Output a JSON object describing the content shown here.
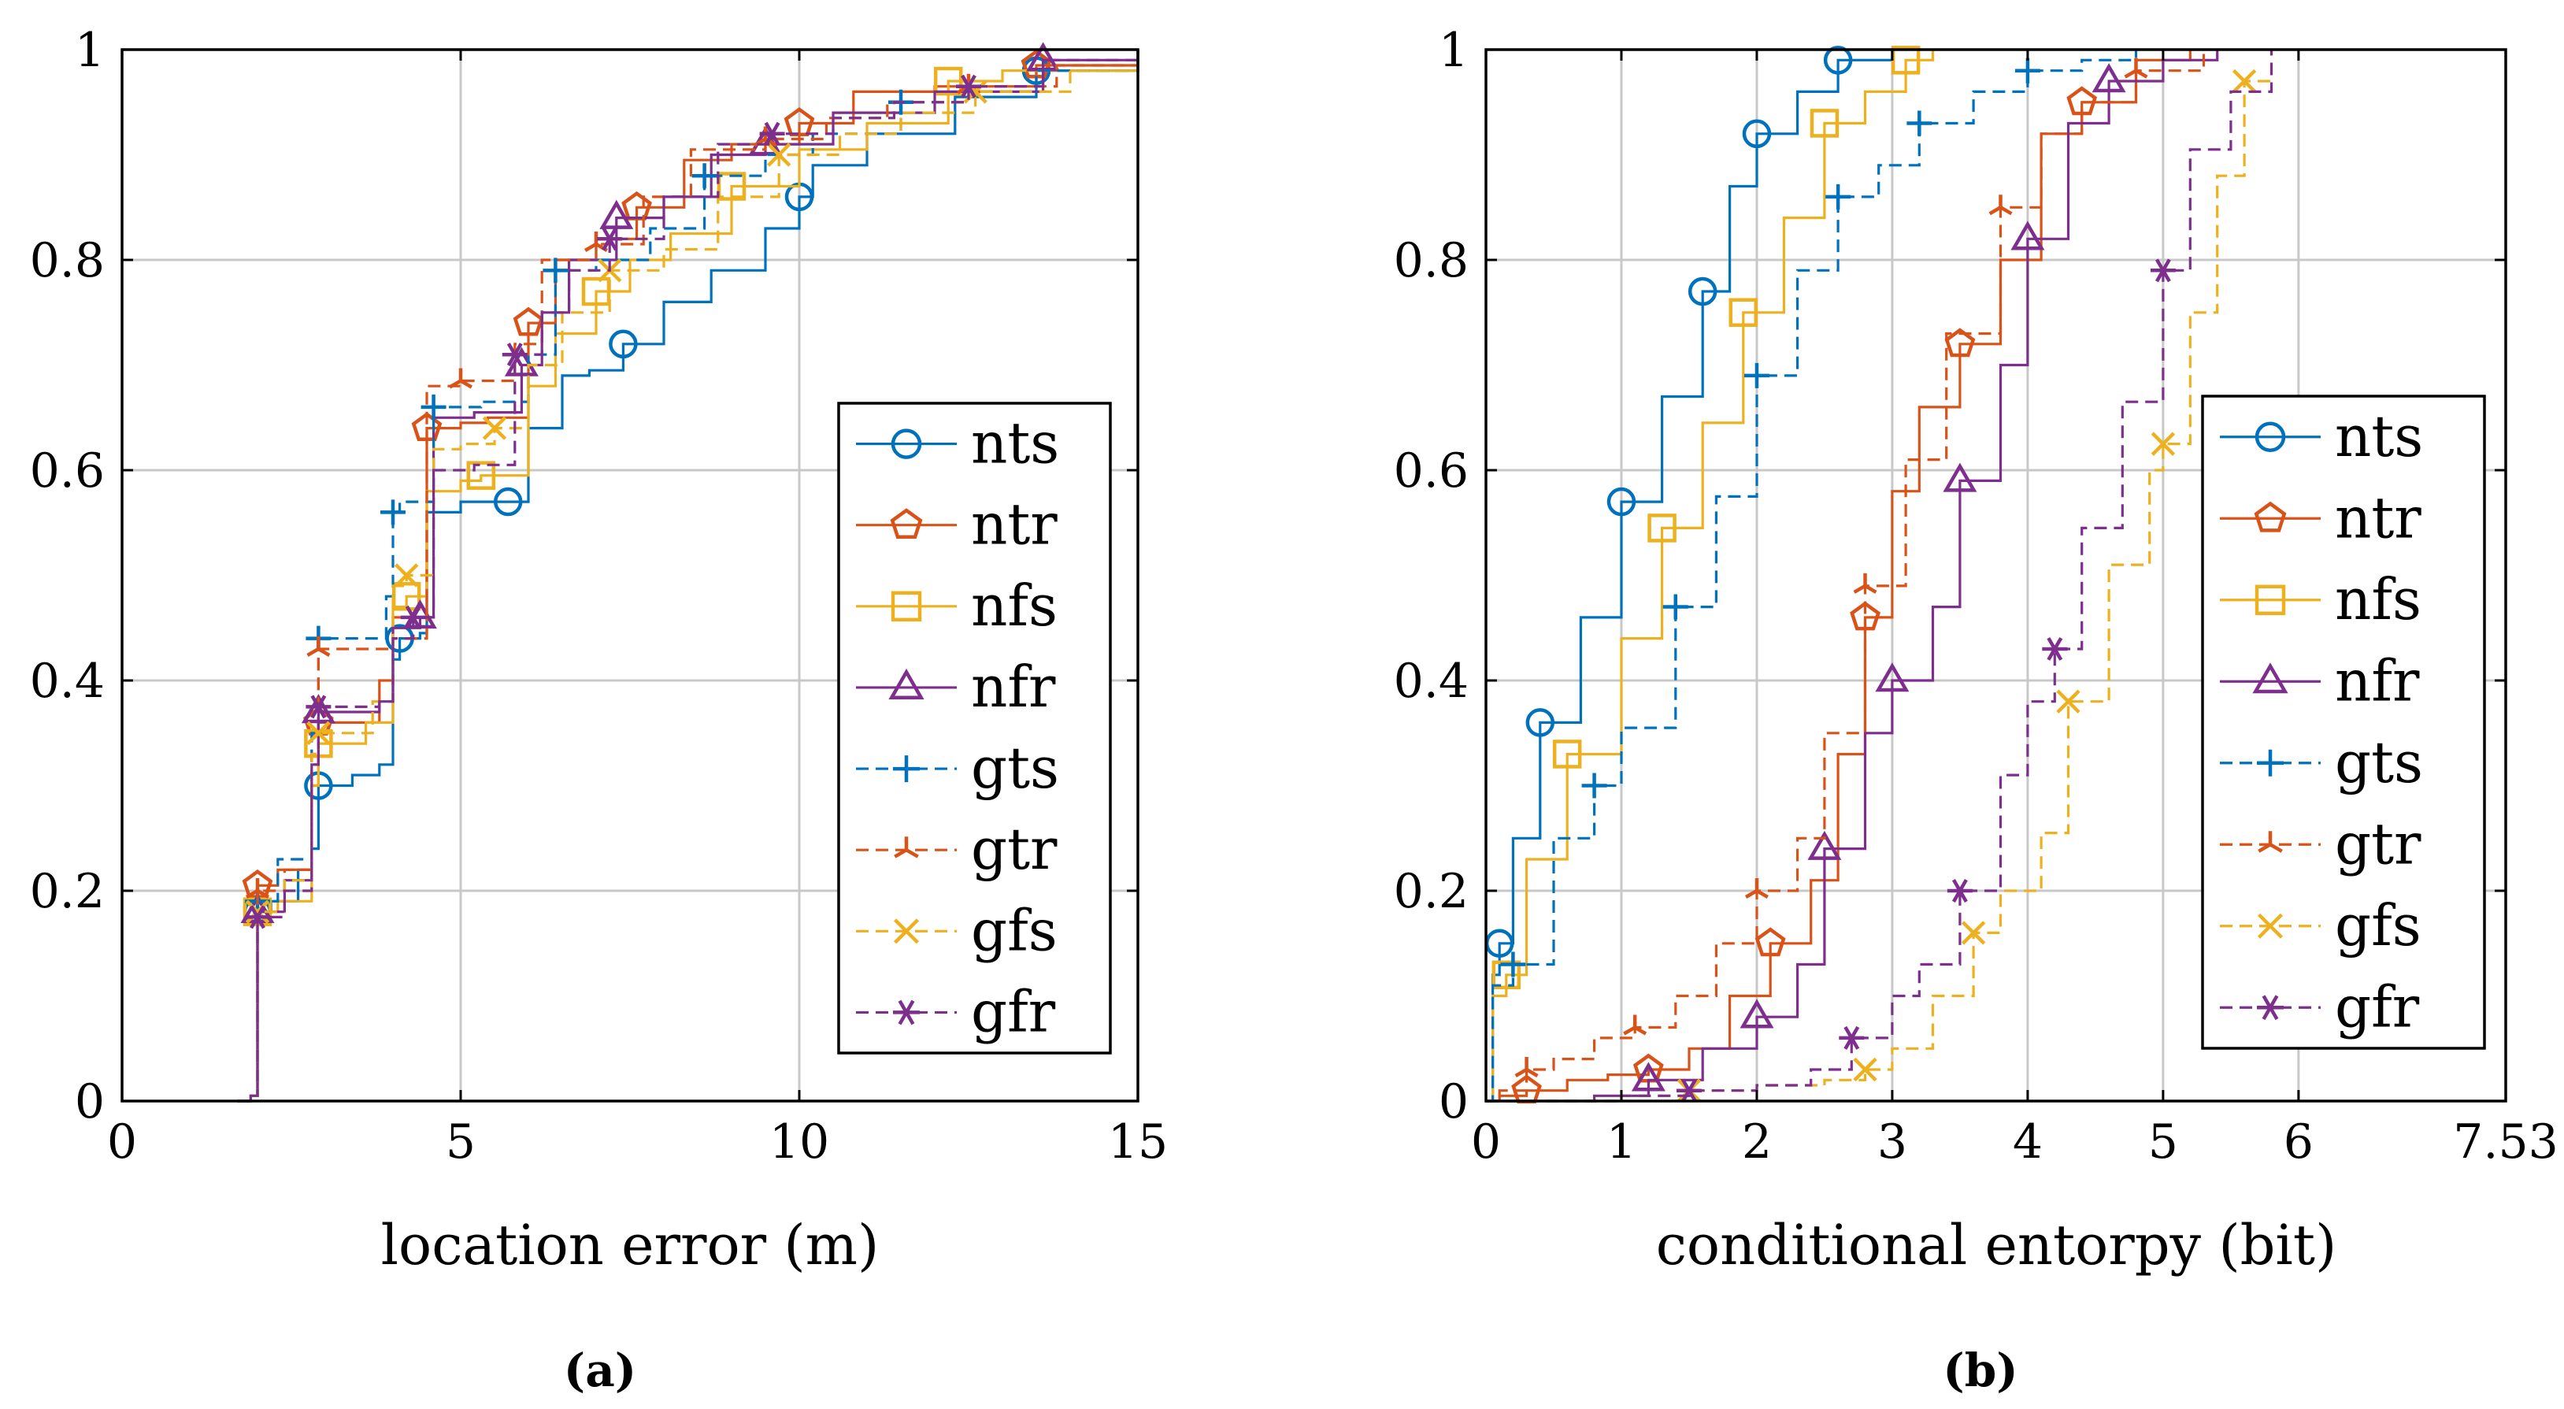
{
  "colors": {
    "nts": "#0072BD",
    "ntr": "#D95319",
    "nfs": "#EDB120",
    "nfr": "#7E2F8E",
    "gts": "#0072BD",
    "gtr": "#D95319",
    "gfs": "#EDB120",
    "gfr": "#7E2F8E"
  },
  "chart_data": [
    {
      "id": "a",
      "type": "line",
      "subtype": "empirical-cdf-step",
      "caption": "(a)",
      "xlabel": "location error (m)",
      "ylabel": "",
      "xlim": [
        0,
        15
      ],
      "ylim": [
        0,
        1
      ],
      "xticks": [
        0,
        5,
        10,
        15
      ],
      "xtick_labels": [
        "0",
        "5",
        "10",
        "15"
      ],
      "yticks": [
        0,
        0.2,
        0.4,
        0.6,
        0.8,
        1
      ],
      "ytick_labels": [
        "0",
        "0.2",
        "0.4",
        "0.6",
        "0.8",
        "1"
      ],
      "grid": true,
      "legend_position": "right-middle",
      "series": [
        {
          "name": "nts",
          "style": "solid",
          "marker": "circle",
          "x": [
            1.7,
            1.9,
            2.0,
            2.2,
            2.6,
            2.8,
            2.9,
            3.4,
            3.8,
            4.0,
            4.1,
            4.4,
            4.5,
            5.0,
            5.7,
            6.0,
            6.5,
            6.9,
            7.4,
            8.0,
            8.7,
            9.5,
            10.0,
            10.2,
            11.0,
            12.3,
            13.5,
            15.0
          ],
          "y": [
            0.0,
            0.005,
            0.18,
            0.19,
            0.22,
            0.24,
            0.3,
            0.31,
            0.32,
            0.42,
            0.44,
            0.445,
            0.56,
            0.57,
            0.57,
            0.64,
            0.69,
            0.695,
            0.72,
            0.76,
            0.79,
            0.83,
            0.86,
            0.89,
            0.92,
            0.955,
            0.98,
            1.0
          ]
        },
        {
          "name": "ntr",
          "style": "solid",
          "marker": "pentagon",
          "x": [
            1.7,
            1.9,
            2.0,
            2.3,
            2.8,
            2.9,
            3.8,
            4.0,
            4.5,
            5.0,
            5.4,
            6.0,
            6.4,
            7.0,
            7.6,
            8.3,
            9.0,
            10.0,
            10.8,
            12.0,
            13.5,
            15.0
          ],
          "y": [
            0.0,
            0.005,
            0.205,
            0.22,
            0.3,
            0.36,
            0.4,
            0.46,
            0.64,
            0.645,
            0.65,
            0.74,
            0.8,
            0.82,
            0.85,
            0.895,
            0.91,
            0.93,
            0.96,
            0.965,
            0.985,
            1.0
          ]
        },
        {
          "name": "nfs",
          "style": "solid",
          "marker": "square",
          "x": [
            1.7,
            1.9,
            2.0,
            2.3,
            2.8,
            2.9,
            3.6,
            4.0,
            4.2,
            4.5,
            5.0,
            5.3,
            6.0,
            6.4,
            7.0,
            7.5,
            8.1,
            9.0,
            10.0,
            11.0,
            12.2,
            13.0,
            15.0
          ],
          "y": [
            0.0,
            0.005,
            0.18,
            0.19,
            0.3,
            0.34,
            0.36,
            0.47,
            0.48,
            0.58,
            0.59,
            0.595,
            0.68,
            0.73,
            0.77,
            0.8,
            0.825,
            0.87,
            0.905,
            0.93,
            0.97,
            0.98,
            1.0
          ]
        },
        {
          "name": "nfr",
          "style": "solid",
          "marker": "triangle",
          "x": [
            1.7,
            1.9,
            2.0,
            2.4,
            2.8,
            2.9,
            3.8,
            4.0,
            4.4,
            4.6,
            5.2,
            5.9,
            6.2,
            6.6,
            7.3,
            8.0,
            8.7,
            9.5,
            10.5,
            12.0,
            13.6,
            15.0
          ],
          "y": [
            0.0,
            0.005,
            0.18,
            0.21,
            0.32,
            0.37,
            0.38,
            0.45,
            0.46,
            0.65,
            0.655,
            0.7,
            0.75,
            0.8,
            0.84,
            0.86,
            0.9,
            0.91,
            0.94,
            0.96,
            0.99,
            1.0
          ]
        },
        {
          "name": "gts",
          "style": "dashed",
          "marker": "plus",
          "x": [
            1.7,
            1.9,
            2.0,
            2.3,
            2.8,
            2.9,
            3.5,
            3.9,
            4.0,
            4.1,
            4.3,
            4.6,
            5.3,
            6.0,
            6.4,
            7.0,
            7.8,
            8.6,
            9.5,
            10.2,
            11.5,
            12.5,
            13.5,
            15.0
          ],
          "y": [
            0.0,
            0.005,
            0.19,
            0.23,
            0.35,
            0.44,
            0.44,
            0.48,
            0.56,
            0.57,
            0.57,
            0.66,
            0.665,
            0.71,
            0.79,
            0.8,
            0.83,
            0.88,
            0.9,
            0.92,
            0.95,
            0.96,
            0.98,
            1.0
          ]
        },
        {
          "name": "gtr",
          "style": "dashed",
          "marker": "tristar",
          "x": [
            1.7,
            1.9,
            2.0,
            2.4,
            2.8,
            2.9,
            4.0,
            4.5,
            5.0,
            5.8,
            6.2,
            7.0,
            7.7,
            8.4,
            9.5,
            10.4,
            11.3,
            12.5,
            13.8,
            15.0
          ],
          "y": [
            0.0,
            0.005,
            0.2,
            0.22,
            0.33,
            0.43,
            0.44,
            0.68,
            0.685,
            0.72,
            0.8,
            0.815,
            0.86,
            0.905,
            0.915,
            0.935,
            0.95,
            0.965,
            0.985,
            1.0
          ]
        },
        {
          "name": "gfs",
          "style": "dashed",
          "marker": "cross",
          "x": [
            1.7,
            1.9,
            2.0,
            2.4,
            2.8,
            2.9,
            3.7,
            4.0,
            4.2,
            4.6,
            5.0,
            5.5,
            6.0,
            6.5,
            7.2,
            8.0,
            8.8,
            9.7,
            10.6,
            11.5,
            12.6,
            14.0,
            15.0
          ],
          "y": [
            0.0,
            0.005,
            0.18,
            0.21,
            0.33,
            0.35,
            0.38,
            0.49,
            0.5,
            0.62,
            0.625,
            0.64,
            0.7,
            0.75,
            0.79,
            0.81,
            0.86,
            0.9,
            0.92,
            0.94,
            0.96,
            0.98,
            1.0
          ]
        },
        {
          "name": "gfr",
          "style": "dashed",
          "marker": "asterisk",
          "x": [
            1.7,
            1.9,
            2.0,
            2.4,
            2.8,
            2.9,
            3.8,
            4.0,
            4.3,
            4.6,
            5.2,
            5.8,
            6.2,
            6.6,
            7.2,
            8.0,
            8.8,
            9.6,
            10.5,
            11.4,
            12.5,
            13.6,
            15.0
          ],
          "y": [
            0.0,
            0.005,
            0.175,
            0.2,
            0.32,
            0.375,
            0.38,
            0.44,
            0.46,
            0.6,
            0.605,
            0.71,
            0.75,
            0.79,
            0.82,
            0.86,
            0.91,
            0.92,
            0.935,
            0.95,
            0.965,
            0.99,
            1.0
          ]
        }
      ]
    },
    {
      "id": "b",
      "type": "line",
      "subtype": "empirical-cdf-step",
      "caption": "(b)",
      "xlabel": "conditional entorpy (bit)",
      "ylabel": "",
      "xlim": [
        0,
        7.53
      ],
      "ylim": [
        0,
        1
      ],
      "xticks": [
        0,
        1,
        2,
        3,
        4,
        5,
        6,
        7.53
      ],
      "xtick_labels": [
        "0",
        "1",
        "2",
        "3",
        "4",
        "5",
        "6",
        "7.53"
      ],
      "yticks": [
        0,
        0.2,
        0.4,
        0.6,
        0.8,
        1
      ],
      "ytick_labels": [
        "0",
        "0.2",
        "0.4",
        "0.6",
        "0.8",
        "1"
      ],
      "grid": true,
      "legend_position": "right-middle",
      "series": [
        {
          "name": "nts",
          "style": "solid",
          "marker": "circle",
          "x": [
            0.0,
            0.05,
            0.1,
            0.2,
            0.4,
            0.7,
            1.0,
            1.3,
            1.6,
            1.8,
            2.0,
            2.3,
            2.6,
            3.0
          ],
          "y": [
            0.0,
            0.12,
            0.15,
            0.25,
            0.36,
            0.46,
            0.57,
            0.67,
            0.77,
            0.87,
            0.92,
            0.96,
            0.99,
            1.0
          ]
        },
        {
          "name": "ntr",
          "style": "solid",
          "marker": "pentagon",
          "x": [
            0.0,
            0.1,
            0.3,
            0.6,
            0.9,
            1.2,
            1.5,
            1.8,
            2.1,
            2.4,
            2.6,
            2.8,
            3.0,
            3.2,
            3.5,
            3.8,
            4.1,
            4.4,
            4.8,
            5.2
          ],
          "y": [
            0.0,
            0.005,
            0.01,
            0.02,
            0.025,
            0.03,
            0.05,
            0.1,
            0.15,
            0.21,
            0.33,
            0.46,
            0.58,
            0.66,
            0.72,
            0.8,
            0.92,
            0.95,
            0.99,
            1.0
          ]
        },
        {
          "name": "nfs",
          "style": "solid",
          "marker": "square",
          "x": [
            0.0,
            0.05,
            0.15,
            0.3,
            0.6,
            1.0,
            1.3,
            1.6,
            1.9,
            2.2,
            2.5,
            2.8,
            3.1,
            3.3
          ],
          "y": [
            0.0,
            0.1,
            0.12,
            0.23,
            0.33,
            0.44,
            0.545,
            0.645,
            0.75,
            0.84,
            0.93,
            0.96,
            0.99,
            1.0
          ]
        },
        {
          "name": "nfr",
          "style": "solid",
          "marker": "triangle",
          "x": [
            0.0,
            0.8,
            1.2,
            1.6,
            2.0,
            2.3,
            2.5,
            2.8,
            3.0,
            3.3,
            3.5,
            3.8,
            4.0,
            4.3,
            4.6,
            5.0,
            5.4
          ],
          "y": [
            0.0,
            0.005,
            0.02,
            0.05,
            0.08,
            0.13,
            0.24,
            0.35,
            0.4,
            0.47,
            0.59,
            0.7,
            0.82,
            0.93,
            0.97,
            0.99,
            1.0
          ]
        },
        {
          "name": "gts",
          "style": "dashed",
          "marker": "plus",
          "x": [
            0.0,
            0.05,
            0.2,
            0.5,
            0.8,
            1.0,
            1.4,
            1.7,
            2.0,
            2.3,
            2.6,
            2.9,
            3.2,
            3.6,
            4.0,
            4.4,
            4.8
          ],
          "y": [
            0.0,
            0.11,
            0.13,
            0.25,
            0.3,
            0.355,
            0.47,
            0.575,
            0.69,
            0.79,
            0.86,
            0.89,
            0.93,
            0.96,
            0.98,
            0.99,
            1.0
          ]
        },
        {
          "name": "gtr",
          "style": "dashed",
          "marker": "tristar",
          "x": [
            0.0,
            0.1,
            0.3,
            0.5,
            0.8,
            1.1,
            1.4,
            1.7,
            2.0,
            2.3,
            2.5,
            2.8,
            3.1,
            3.4,
            3.8,
            4.1,
            4.4,
            4.8,
            5.3
          ],
          "y": [
            0.0,
            0.01,
            0.03,
            0.04,
            0.06,
            0.07,
            0.1,
            0.15,
            0.2,
            0.25,
            0.35,
            0.49,
            0.61,
            0.73,
            0.85,
            0.92,
            0.95,
            0.98,
            1.0
          ]
        },
        {
          "name": "gfs",
          "style": "dashed",
          "marker": "cross",
          "x": [
            0.0,
            1.0,
            1.5,
            2.0,
            2.5,
            2.8,
            3.0,
            3.3,
            3.6,
            3.8,
            4.1,
            4.3,
            4.6,
            4.9,
            5.0,
            5.2,
            5.4,
            5.6,
            5.8
          ],
          "y": [
            0.0,
            0.005,
            0.01,
            0.015,
            0.02,
            0.03,
            0.05,
            0.1,
            0.16,
            0.2,
            0.255,
            0.38,
            0.51,
            0.6,
            0.625,
            0.75,
            0.88,
            0.97,
            1.0
          ]
        },
        {
          "name": "gfr",
          "style": "dashed",
          "marker": "asterisk",
          "x": [
            0.0,
            1.0,
            1.5,
            2.0,
            2.4,
            2.7,
            3.0,
            3.2,
            3.5,
            3.8,
            4.0,
            4.2,
            4.4,
            4.7,
            5.0,
            5.2,
            5.5,
            5.8
          ],
          "y": [
            0.0,
            0.005,
            0.01,
            0.015,
            0.03,
            0.06,
            0.1,
            0.13,
            0.2,
            0.31,
            0.38,
            0.43,
            0.545,
            0.665,
            0.79,
            0.905,
            0.96,
            1.0
          ]
        }
      ]
    }
  ]
}
